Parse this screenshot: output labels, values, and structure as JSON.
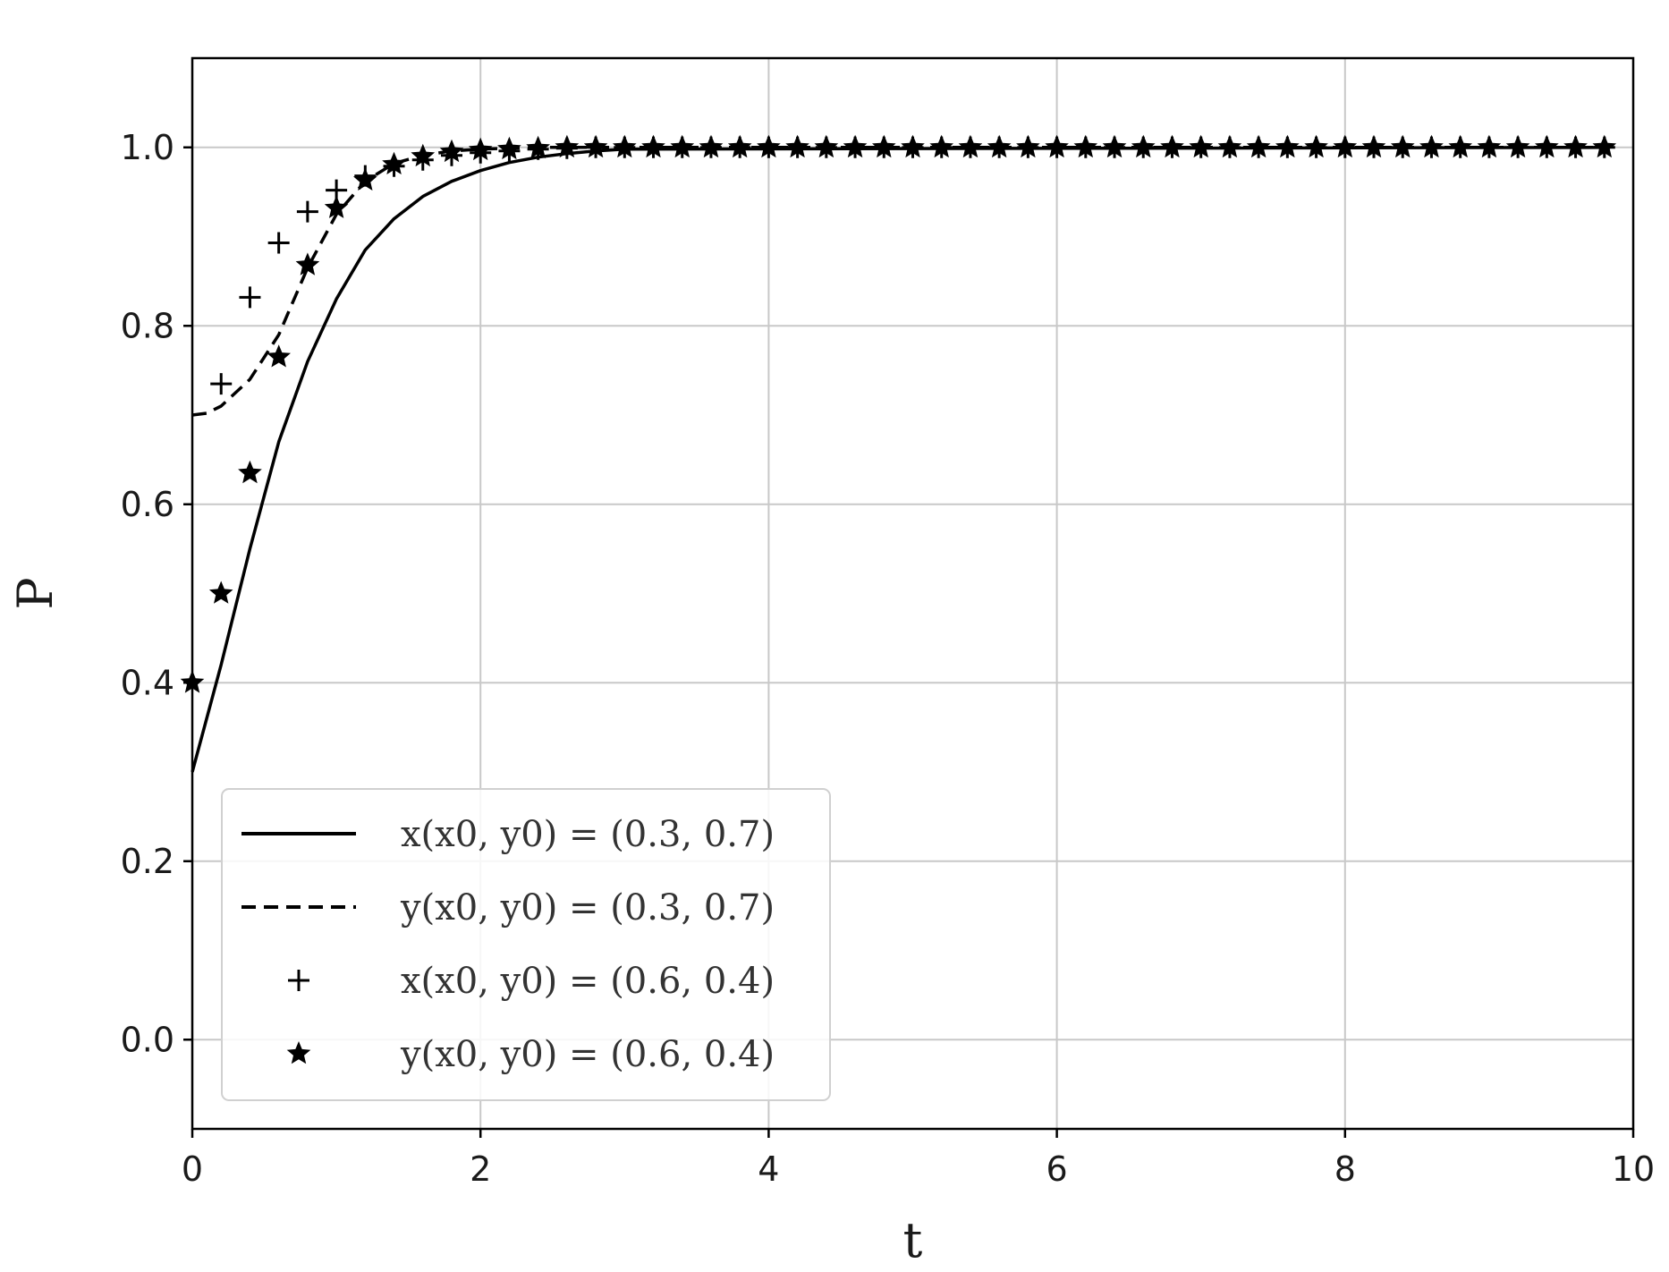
{
  "chart_data": {
    "type": "line",
    "title": "",
    "xlabel": "t",
    "ylabel": "P",
    "xlim": [
      0,
      10
    ],
    "ylim": [
      -0.1,
      1.1
    ],
    "xticks": [
      0,
      2,
      4,
      6,
      8,
      10
    ],
    "yticks": [
      0.0,
      0.2,
      0.4,
      0.6,
      0.8,
      1.0
    ],
    "xtick_labels": [
      "0",
      "2",
      "4",
      "6",
      "8",
      "10"
    ],
    "ytick_labels": [
      "0.0",
      "0.2",
      "0.4",
      "0.6",
      "0.8",
      "1.0"
    ],
    "grid": true,
    "legend_position": "lower-left",
    "series": [
      {
        "name": "x(x0, y0)  =  (0.3, 0.7)",
        "style": "solid",
        "color": "#000000",
        "x": [
          0,
          0.2,
          0.4,
          0.6,
          0.8,
          1.0,
          1.2,
          1.4,
          1.6,
          1.8,
          2.0,
          2.2,
          2.4,
          2.6,
          2.8,
          3.0,
          9.8
        ],
        "y": [
          0.3,
          0.42,
          0.55,
          0.67,
          0.76,
          0.83,
          0.885,
          0.92,
          0.945,
          0.962,
          0.974,
          0.983,
          0.989,
          0.993,
          0.996,
          0.998,
          1.0
        ]
      },
      {
        "name": "y(x0, y0)  =  (0.3, 0.7)",
        "style": "dashed",
        "color": "#000000",
        "x": [
          0,
          0.1,
          0.2,
          0.4,
          0.6,
          0.8,
          1.0,
          1.2,
          1.4,
          1.6,
          1.8,
          2.0,
          2.2,
          2.4,
          9.8
        ],
        "y": [
          0.7,
          0.702,
          0.71,
          0.74,
          0.79,
          0.865,
          0.925,
          0.962,
          0.982,
          0.991,
          0.996,
          0.998,
          0.999,
          1.0,
          1.0
        ]
      },
      {
        "name": "x(x0, y0)  =  (0.6, 0.4)",
        "style": "plus",
        "color": "#000000",
        "x": [
          0.2,
          0.4,
          0.6,
          0.8,
          1.0,
          1.2,
          1.4,
          1.6,
          1.8,
          2.0,
          2.2,
          2.4,
          2.6,
          2.8,
          3.0,
          3.2,
          3.4,
          3.6,
          3.8,
          4.0,
          4.2,
          4.4,
          4.6,
          4.8,
          5.0,
          5.2,
          5.4,
          5.6,
          5.8,
          6.0,
          6.2,
          6.4,
          6.6,
          6.8,
          7.0,
          7.2,
          7.4,
          7.6,
          7.8,
          8.0,
          8.2,
          8.4,
          8.6,
          8.8,
          9.0,
          9.2,
          9.4,
          9.6,
          9.8
        ],
        "y": [
          0.735,
          0.832,
          0.893,
          0.928,
          0.952,
          0.968,
          0.979,
          0.986,
          0.991,
          0.994,
          0.996,
          0.998,
          0.999,
          1.0,
          1.0,
          1.0,
          1.0,
          1.0,
          1.0,
          1.0,
          1.0,
          1.0,
          1.0,
          1.0,
          1.0,
          1.0,
          1.0,
          1.0,
          1.0,
          1.0,
          1.0,
          1.0,
          1.0,
          1.0,
          1.0,
          1.0,
          1.0,
          1.0,
          1.0,
          1.0,
          1.0,
          1.0,
          1.0,
          1.0,
          1.0,
          1.0,
          1.0,
          1.0,
          1.0
        ]
      },
      {
        "name": "y(x0, y0)  =  (0.6, 0.4)",
        "style": "star",
        "color": "#000000",
        "x": [
          0,
          0.2,
          0.4,
          0.6,
          0.8,
          1.0,
          1.2,
          1.4,
          1.6,
          1.8,
          2.0,
          2.2,
          2.4,
          2.6,
          2.8,
          3.0,
          3.2,
          3.4,
          3.6,
          3.8,
          4.0,
          4.2,
          4.4,
          4.6,
          4.8,
          5.0,
          5.2,
          5.4,
          5.6,
          5.8,
          6.0,
          6.2,
          6.4,
          6.6,
          6.8,
          7.0,
          7.2,
          7.4,
          7.6,
          7.8,
          8.0,
          8.2,
          8.4,
          8.6,
          8.8,
          9.0,
          9.2,
          9.4,
          9.6,
          9.8
        ],
        "y": [
          0.4,
          0.5,
          0.635,
          0.765,
          0.868,
          0.932,
          0.963,
          0.981,
          0.99,
          0.995,
          0.997,
          0.998,
          0.999,
          1.0,
          1.0,
          1.0,
          1.0,
          1.0,
          1.0,
          1.0,
          1.0,
          1.0,
          1.0,
          1.0,
          1.0,
          1.0,
          1.0,
          1.0,
          1.0,
          1.0,
          1.0,
          1.0,
          1.0,
          1.0,
          1.0,
          1.0,
          1.0,
          1.0,
          1.0,
          1.0,
          1.0,
          1.0,
          1.0,
          1.0,
          1.0,
          1.0,
          1.0,
          1.0,
          1.0,
          1.0
        ]
      }
    ]
  }
}
